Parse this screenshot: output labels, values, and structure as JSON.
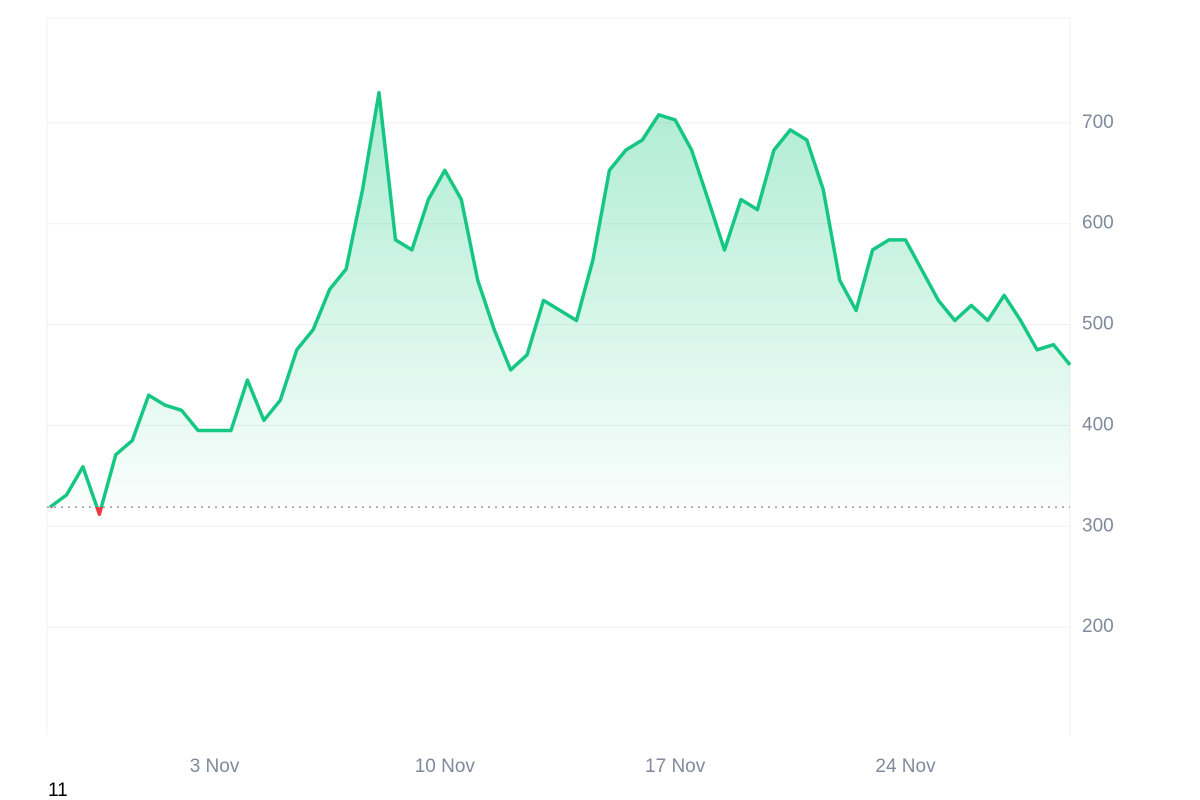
{
  "chart_data": {
    "type": "line",
    "categories": [
      null,
      null,
      null,
      null,
      null,
      null,
      null,
      null,
      null,
      null,
      "3 Nov",
      null,
      null,
      null,
      null,
      null,
      null,
      null,
      null,
      null,
      null,
      null,
      null,
      null,
      "10 Nov",
      null,
      null,
      null,
      null,
      null,
      null,
      null,
      null,
      null,
      null,
      null,
      null,
      null,
      "17 Nov",
      null,
      null,
      null,
      null,
      null,
      null,
      null,
      null,
      null,
      null,
      null,
      null,
      null,
      "24 Nov",
      null,
      null,
      null,
      null,
      null,
      null,
      null,
      null,
      null,
      null
    ],
    "values": [
      319,
      331,
      359,
      312,
      371,
      385,
      430,
      420,
      415,
      395,
      395,
      395,
      445,
      405,
      425,
      475,
      495,
      535,
      555,
      634,
      730,
      584,
      574,
      624,
      653,
      624,
      544,
      495,
      455,
      470,
      524,
      514,
      504,
      564,
      653,
      673,
      683,
      708,
      703,
      673,
      624,
      574,
      624,
      614,
      673,
      693,
      683,
      634,
      544,
      514,
      574,
      584,
      584,
      554,
      524,
      504,
      519,
      504,
      529,
      504,
      475,
      480,
      460
    ],
    "color": "#16c784",
    "down_color": "#ea3943",
    "ylim": [
      93,
      804
    ],
    "yticks": [
      200,
      300,
      400,
      500,
      600,
      700
    ],
    "grid": true,
    "footer": "11"
  }
}
